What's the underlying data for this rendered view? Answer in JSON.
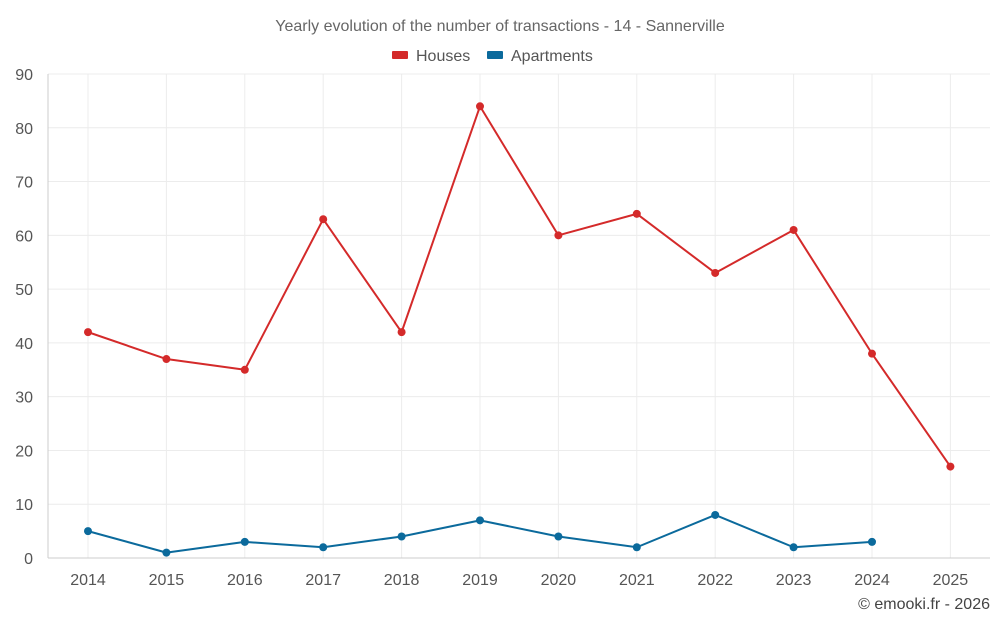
{
  "chart_data": {
    "type": "line",
    "title": "Yearly evolution of the number of transactions - 14 - Sannerville",
    "xlabel": "",
    "ylabel": "",
    "ylim": [
      0,
      90
    ],
    "yticks": [
      0,
      10,
      20,
      30,
      40,
      50,
      60,
      70,
      80,
      90
    ],
    "grid": true,
    "legend_position": "top-center",
    "categories": [
      "2014",
      "2015",
      "2016",
      "2017",
      "2018",
      "2019",
      "2020",
      "2021",
      "2022",
      "2023",
      "2024",
      "2025"
    ],
    "series": [
      {
        "name": "Houses",
        "color": "#d42a2a",
        "values": [
          42,
          37,
          35,
          63,
          42,
          84,
          60,
          64,
          53,
          61,
          38,
          17
        ]
      },
      {
        "name": "Apartments",
        "color": "#0b6a9c",
        "values": [
          5,
          1,
          3,
          2,
          4,
          7,
          4,
          2,
          8,
          2,
          3,
          null
        ]
      }
    ]
  },
  "credit": "© emooki.fr - 2026"
}
